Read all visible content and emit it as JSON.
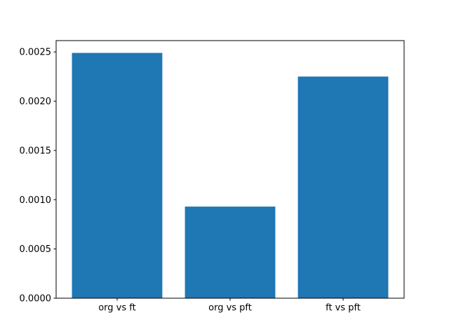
{
  "chart_data": {
    "type": "bar",
    "categories": [
      "org vs ft",
      "org vs pft",
      "ft vs pft"
    ],
    "values": [
      0.00249,
      0.00093,
      0.00225
    ],
    "title": "",
    "xlabel": "",
    "ylabel": "",
    "ylim": [
      0,
      0.002615
    ],
    "yticks": [
      0.0,
      0.0005,
      0.001,
      0.0015,
      0.002,
      0.0025
    ],
    "ytick_labels": [
      "0.0000",
      "0.0005",
      "0.0010",
      "0.0015",
      "0.0020",
      "0.0025"
    ],
    "bar_color": "#1f77b4",
    "axis_color": "#000000",
    "background_color": "#ffffff",
    "grid": false,
    "legend": null,
    "bar_relative_width": 0.8
  }
}
